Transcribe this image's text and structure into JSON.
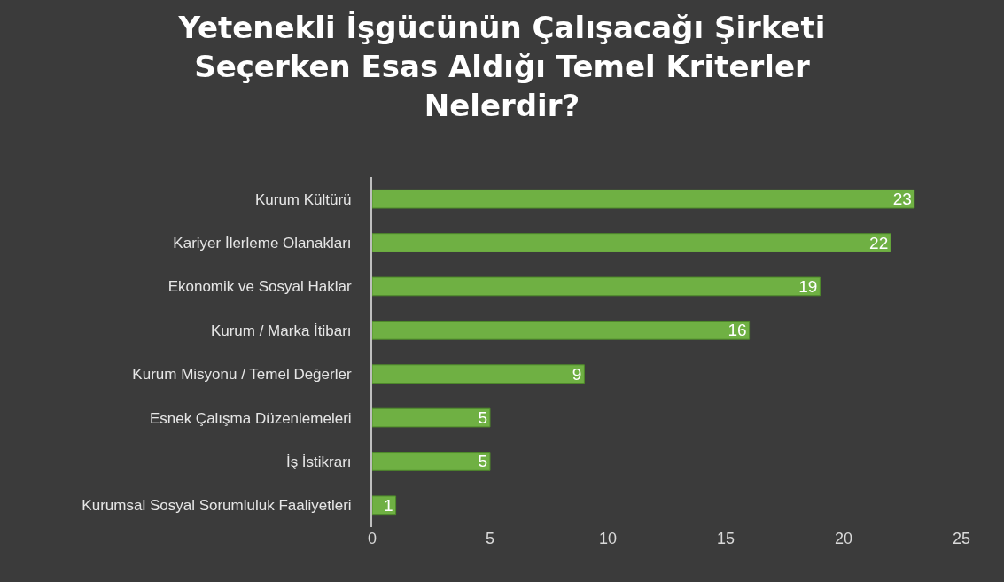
{
  "chart_data": {
    "type": "bar",
    "orientation": "horizontal",
    "title": "Yetenekli İşgücünün Çalışacağı Şirketi\nSeçerken Esas Aldığı Temel Kriterler\nNelerdir?",
    "categories": [
      "Kurum Kültürü",
      "Kariyer İlerleme Olanakları",
      "Ekonomik ve Sosyal Haklar",
      "Kurum / Marka İtibarı",
      "Kurum Misyonu / Temel Değerler",
      "Esnek Çalışma Düzenlemeleri",
      "İş İstikrarı",
      "Kurumsal Sosyal Sorumluluk Faaliyetleri"
    ],
    "values": [
      23,
      22,
      19,
      16,
      9,
      5,
      5,
      1
    ],
    "color": "#6fb043",
    "xlim": [
      0,
      25
    ],
    "xticks": [
      0,
      5,
      10,
      15,
      20,
      25
    ],
    "data_labels": true,
    "grid": false,
    "legend": false
  }
}
